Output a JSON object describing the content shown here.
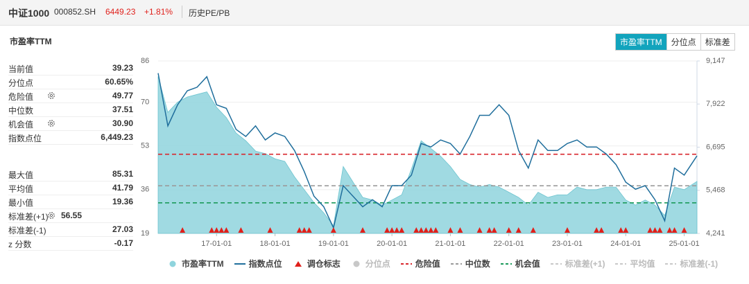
{
  "header": {
    "name": "中证1000",
    "code": "000852.SH",
    "price": 6449.23,
    "change": 1.81,
    "change_label": "+1.81%",
    "tab": "历史PE/PB"
  },
  "panel_title": "市盈率TTM",
  "tabs": [
    "市盈率TTM",
    "分位点",
    "标准差"
  ],
  "stats": [
    {
      "label": "当前值",
      "value": 39.23
    },
    {
      "label": "分位点",
      "value": 60.65,
      "value_label": "60.65%"
    },
    {
      "label": "危险值",
      "value": 49.77
    },
    {
      "label": "中位数",
      "value": 37.51
    },
    {
      "label": "机会值",
      "value": 30.9,
      "value_label": "30.90"
    },
    {
      "label": "指数点位",
      "value": 6449.23,
      "value_label": "6,449.23"
    },
    {
      "label": "最大值",
      "value": 85.31
    },
    {
      "label": "平均值",
      "value": 41.79
    },
    {
      "label": "最小值",
      "value": 19.36
    },
    {
      "label": "标准差(+1)",
      "value": 56.55
    },
    {
      "label": "标准差(-1)",
      "value": 27.03
    },
    {
      "label": "z 分数",
      "value": -0.17
    }
  ],
  "chart_data": {
    "type": "combo",
    "x": [
      "16-01-01",
      "16-03-01",
      "16-05-01",
      "16-07-01",
      "16-09-01",
      "16-11-01",
      "17-01-01",
      "17-03-01",
      "17-05-01",
      "17-07-01",
      "17-09-01",
      "17-11-01",
      "18-01-01",
      "18-03-01",
      "18-05-01",
      "18-07-01",
      "18-09-01",
      "18-11-01",
      "19-01-01",
      "19-03-01",
      "19-05-01",
      "19-07-01",
      "19-09-01",
      "19-11-01",
      "20-01-01",
      "20-03-01",
      "20-05-01",
      "20-07-01",
      "20-09-01",
      "20-11-01",
      "21-01-01",
      "21-03-01",
      "21-05-01",
      "21-07-01",
      "21-09-01",
      "21-11-01",
      "22-01-01",
      "22-03-01",
      "22-05-01",
      "22-07-01",
      "22-09-01",
      "22-11-01",
      "23-01-01",
      "23-03-01",
      "23-05-01",
      "23-07-01",
      "23-09-01",
      "23-11-01",
      "24-01-01",
      "24-03-01",
      "24-05-01",
      "24-07-01",
      "24-09-01",
      "24-11-01",
      "25-01-01",
      "25-03-20"
    ],
    "series": [
      {
        "name": "市盈率TTM",
        "color": "#8fd4dd",
        "values": [
          80,
          66,
          70,
          72,
          73,
          74,
          68,
          64,
          58,
          55,
          51,
          50,
          48,
          47,
          41,
          36,
          31,
          27,
          22,
          45,
          39,
          33,
          32,
          30,
          32,
          34,
          44,
          55,
          52,
          49,
          45,
          40,
          38,
          37,
          38,
          37,
          35,
          33,
          30,
          35,
          33,
          34,
          34,
          37,
          36,
          36,
          37,
          37,
          32,
          30,
          32,
          30,
          26,
          37,
          36,
          39.23
        ]
      },
      {
        "name": "指数点位",
        "color": "#1f6e9c",
        "axis": "y2",
        "values": [
          8800,
          7300,
          7900,
          8300,
          8400,
          8700,
          7900,
          7800,
          7200,
          7000,
          7300,
          6900,
          7100,
          7000,
          6600,
          6000,
          5300,
          5000,
          4400,
          5600,
          5300,
          5000,
          5200,
          5000,
          5600,
          5600,
          5900,
          6800,
          6700,
          6900,
          6800,
          6500,
          7000,
          7600,
          7600,
          7900,
          7600,
          6600,
          6100,
          6900,
          6600,
          6600,
          6800,
          6900,
          6700,
          6700,
          6500,
          6200,
          5700,
          5500,
          5600,
          5200,
          4600,
          6100,
          5900,
          6449.23
        ]
      }
    ],
    "markers": {
      "name": "调仓标志",
      "color": "#e0201b",
      "x": [
        "16-06-01",
        "16-12-01",
        "17-01-01",
        "17-02-01",
        "17-03-01",
        "17-06-01",
        "17-12-01",
        "18-06-01",
        "18-07-01",
        "18-08-01",
        "19-01-01",
        "19-07-01",
        "19-12-01",
        "20-01-01",
        "20-02-01",
        "20-03-01",
        "20-06-01",
        "20-07-01",
        "20-08-01",
        "20-09-01",
        "20-10-01",
        "21-01-01",
        "21-03-01",
        "21-07-01",
        "21-09-01",
        "21-10-01",
        "22-01-01",
        "22-03-01",
        "22-06-01",
        "23-01-01",
        "23-07-01",
        "23-08-01",
        "23-12-01",
        "24-01-01",
        "24-06-01",
        "24-07-01",
        "24-08-01",
        "24-10-01",
        "24-11-01",
        "25-01-01"
      ]
    },
    "reference_lines": [
      {
        "name": "危险值",
        "color": "#d9262c",
        "value": 49.77
      },
      {
        "name": "中位数",
        "color": "#9a9a9a",
        "value": 37.51
      },
      {
        "name": "机会值",
        "color": "#1a9a5a",
        "value": 30.9
      }
    ],
    "hidden_items": [
      {
        "name": "分位点",
        "color": "#c8c8c8",
        "mark": "dot"
      },
      {
        "name": "标准差(+1)",
        "color": "#c8c8c8",
        "mark": "dash"
      },
      {
        "name": "平均值",
        "color": "#c8c8c8",
        "mark": "dash"
      },
      {
        "name": "标准差(-1)",
        "color": "#c8c8c8",
        "mark": "dash"
      }
    ],
    "xlim": [
      "16-01-01",
      "25-03-20"
    ],
    "xticks": [
      "17-01-01",
      "18-01-01",
      "19-01-01",
      "20-01-01",
      "21-01-01",
      "22-01-01",
      "23-01-01",
      "24-01-01",
      "25-01-01"
    ],
    "ylim": [
      19,
      86
    ],
    "yticks": [
      19,
      36,
      53,
      70,
      86
    ],
    "y2lim": [
      4241,
      9147
    ],
    "y2ticks": [
      {
        "value": 4241,
        "label": "4,241"
      },
      {
        "value": 5468,
        "label": "5,468"
      },
      {
        "value": 6695,
        "label": "6,695"
      },
      {
        "value": 7922,
        "label": "7,922"
      },
      {
        "value": 9147,
        "label": "9,147"
      }
    ]
  }
}
